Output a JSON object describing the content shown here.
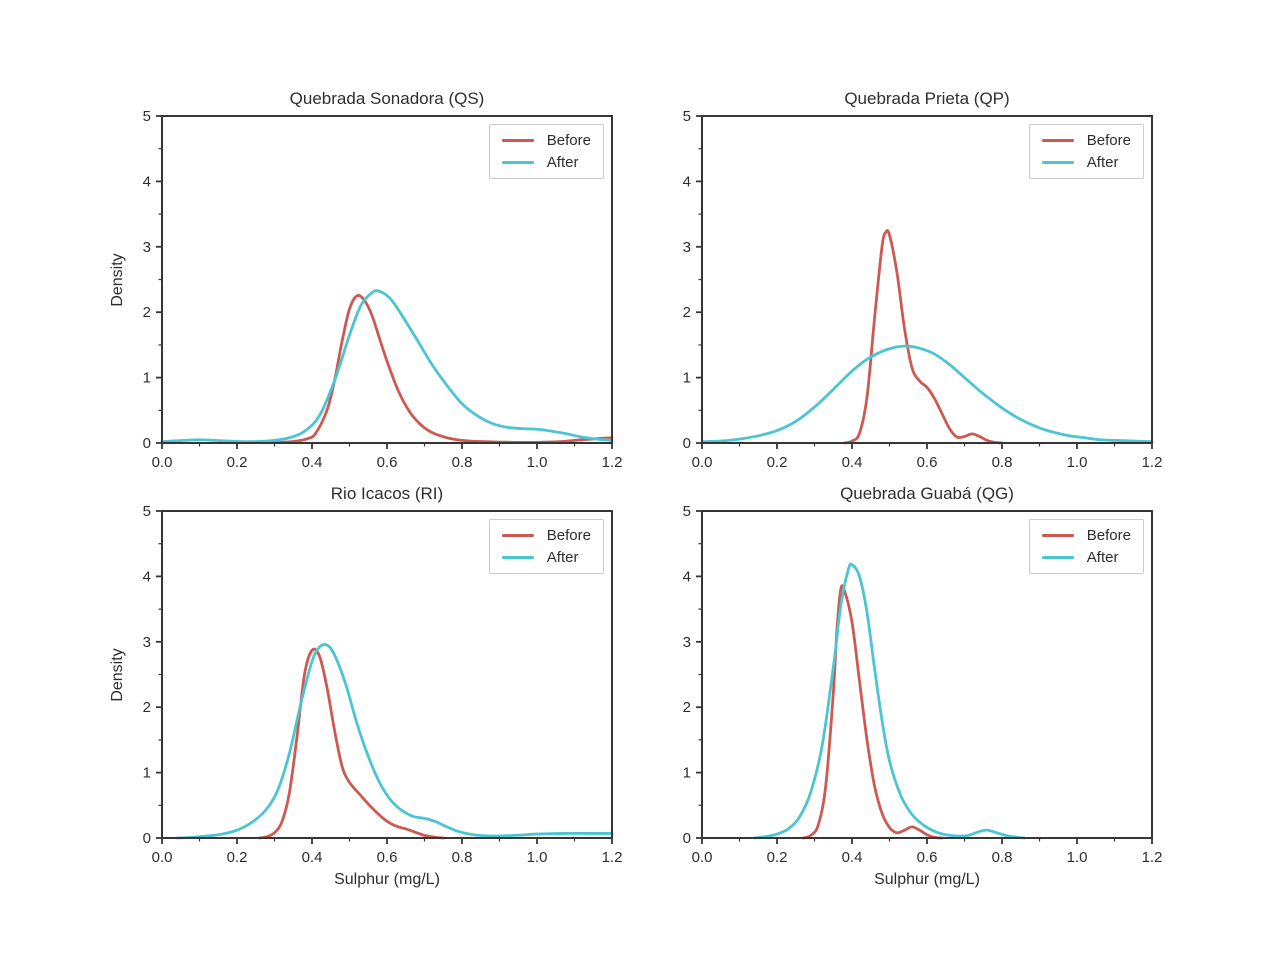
{
  "figure": {
    "background": "#ffffff"
  },
  "style": {
    "before_color": "#cd5a52",
    "after_color": "#4cc5d2",
    "spine_color": "#363636",
    "text_color": "#2e2e2e",
    "legend_border_color": "#cccccc"
  },
  "legend": {
    "before": "Before",
    "after": "After",
    "position": "upper right"
  },
  "axes": {
    "xlabel": "Sulphur (mg/L)",
    "ylabel": "Density",
    "xlim": [
      0,
      1.2
    ],
    "ylim": [
      0,
      5
    ],
    "x_ticks": [
      0.0,
      0.2,
      0.4,
      0.6,
      0.8,
      1.0,
      1.2
    ],
    "x_tick_labels": [
      "0.0",
      "0.2",
      "0.4",
      "0.6",
      "0.8",
      "1.0",
      "1.2"
    ],
    "y_ticks": [
      0,
      1,
      2,
      3,
      4,
      5
    ],
    "y_tick_labels": [
      "0",
      "1",
      "2",
      "3",
      "4",
      "5"
    ],
    "x_minor_step": 0.1,
    "y_minor_step": 0.5,
    "grid": false
  },
  "chart_data": [
    {
      "type": "line",
      "subtype": "kde-density",
      "title": "Quebrada Sonadora (QS)",
      "series": [
        {
          "name": "Before",
          "color": "#cd5a52",
          "points": [
            [
              0.28,
              0.005
            ],
            [
              0.32,
              0.01
            ],
            [
              0.36,
              0.03
            ],
            [
              0.39,
              0.07
            ],
            [
              0.41,
              0.15
            ],
            [
              0.44,
              0.5
            ],
            [
              0.46,
              0.95
            ],
            [
              0.48,
              1.55
            ],
            [
              0.5,
              2.05
            ],
            [
              0.52,
              2.25
            ],
            [
              0.54,
              2.18
            ],
            [
              0.56,
              1.95
            ],
            [
              0.58,
              1.6
            ],
            [
              0.6,
              1.25
            ],
            [
              0.63,
              0.8
            ],
            [
              0.66,
              0.48
            ],
            [
              0.69,
              0.28
            ],
            [
              0.72,
              0.16
            ],
            [
              0.76,
              0.08
            ],
            [
              0.8,
              0.04
            ],
            [
              0.86,
              0.02
            ],
            [
              0.94,
              0.01
            ],
            [
              1.0,
              0.01
            ],
            [
              1.06,
              0.02
            ],
            [
              1.12,
              0.05
            ],
            [
              1.17,
              0.07
            ],
            [
              1.2,
              0.08
            ]
          ]
        },
        {
          "name": "After",
          "color": "#4cc5d2",
          "points": [
            [
              0.0,
              0.02
            ],
            [
              0.06,
              0.04
            ],
            [
              0.1,
              0.05
            ],
            [
              0.14,
              0.04
            ],
            [
              0.18,
              0.03
            ],
            [
              0.24,
              0.02
            ],
            [
              0.3,
              0.04
            ],
            [
              0.34,
              0.08
            ],
            [
              0.38,
              0.18
            ],
            [
              0.42,
              0.42
            ],
            [
              0.46,
              0.95
            ],
            [
              0.5,
              1.65
            ],
            [
              0.53,
              2.1
            ],
            [
              0.56,
              2.3
            ],
            [
              0.58,
              2.32
            ],
            [
              0.61,
              2.2
            ],
            [
              0.64,
              1.95
            ],
            [
              0.68,
              1.58
            ],
            [
              0.72,
              1.2
            ],
            [
              0.76,
              0.88
            ],
            [
              0.8,
              0.6
            ],
            [
              0.84,
              0.42
            ],
            [
              0.88,
              0.3
            ],
            [
              0.92,
              0.24
            ],
            [
              0.96,
              0.22
            ],
            [
              1.0,
              0.21
            ],
            [
              1.04,
              0.18
            ],
            [
              1.08,
              0.14
            ],
            [
              1.12,
              0.09
            ],
            [
              1.16,
              0.06
            ],
            [
              1.2,
              0.04
            ]
          ]
        }
      ]
    },
    {
      "type": "line",
      "subtype": "kde-density",
      "title": "Quebrada Prieta (QP)",
      "series": [
        {
          "name": "Before",
          "color": "#cd5a52",
          "points": [
            [
              0.38,
              0.0
            ],
            [
              0.4,
              0.03
            ],
            [
              0.42,
              0.15
            ],
            [
              0.44,
              0.7
            ],
            [
              0.46,
              1.9
            ],
            [
              0.48,
              3.0
            ],
            [
              0.49,
              3.22
            ],
            [
              0.5,
              3.18
            ],
            [
              0.52,
              2.6
            ],
            [
              0.54,
              1.75
            ],
            [
              0.56,
              1.15
            ],
            [
              0.58,
              0.95
            ],
            [
              0.6,
              0.85
            ],
            [
              0.62,
              0.68
            ],
            [
              0.64,
              0.45
            ],
            [
              0.66,
              0.22
            ],
            [
              0.68,
              0.09
            ],
            [
              0.7,
              0.1
            ],
            [
              0.72,
              0.14
            ],
            [
              0.74,
              0.1
            ],
            [
              0.76,
              0.04
            ],
            [
              0.78,
              0.01
            ],
            [
              0.8,
              0.0
            ]
          ]
        },
        {
          "name": "After",
          "color": "#4cc5d2",
          "points": [
            [
              0.0,
              0.02
            ],
            [
              0.05,
              0.03
            ],
            [
              0.1,
              0.06
            ],
            [
              0.15,
              0.11
            ],
            [
              0.2,
              0.19
            ],
            [
              0.25,
              0.33
            ],
            [
              0.3,
              0.55
            ],
            [
              0.35,
              0.82
            ],
            [
              0.4,
              1.1
            ],
            [
              0.44,
              1.28
            ],
            [
              0.48,
              1.4
            ],
            [
              0.52,
              1.47
            ],
            [
              0.55,
              1.48
            ],
            [
              0.58,
              1.45
            ],
            [
              0.62,
              1.36
            ],
            [
              0.66,
              1.2
            ],
            [
              0.7,
              1.0
            ],
            [
              0.74,
              0.8
            ],
            [
              0.78,
              0.62
            ],
            [
              0.82,
              0.46
            ],
            [
              0.86,
              0.33
            ],
            [
              0.9,
              0.23
            ],
            [
              0.94,
              0.16
            ],
            [
              0.98,
              0.11
            ],
            [
              1.02,
              0.08
            ],
            [
              1.06,
              0.05
            ],
            [
              1.1,
              0.04
            ],
            [
              1.15,
              0.03
            ],
            [
              1.2,
              0.02
            ]
          ]
        }
      ]
    },
    {
      "type": "line",
      "subtype": "kde-density",
      "title": "Rio Icacos (RI)",
      "series": [
        {
          "name": "Before",
          "color": "#cd5a52",
          "points": [
            [
              0.26,
              0.0
            ],
            [
              0.28,
              0.02
            ],
            [
              0.3,
              0.08
            ],
            [
              0.32,
              0.25
            ],
            [
              0.34,
              0.7
            ],
            [
              0.36,
              1.55
            ],
            [
              0.38,
              2.5
            ],
            [
              0.4,
              2.87
            ],
            [
              0.42,
              2.78
            ],
            [
              0.44,
              2.3
            ],
            [
              0.46,
              1.65
            ],
            [
              0.48,
              1.1
            ],
            [
              0.5,
              0.85
            ],
            [
              0.53,
              0.65
            ],
            [
              0.56,
              0.46
            ],
            [
              0.59,
              0.3
            ],
            [
              0.61,
              0.22
            ],
            [
              0.63,
              0.17
            ],
            [
              0.65,
              0.14
            ],
            [
              0.67,
              0.1
            ],
            [
              0.7,
              0.04
            ],
            [
              0.73,
              0.01
            ],
            [
              0.75,
              0.0
            ]
          ]
        },
        {
          "name": "After",
          "color": "#4cc5d2",
          "points": [
            [
              0.04,
              0.0
            ],
            [
              0.08,
              0.01
            ],
            [
              0.12,
              0.03
            ],
            [
              0.16,
              0.06
            ],
            [
              0.2,
              0.12
            ],
            [
              0.24,
              0.24
            ],
            [
              0.28,
              0.45
            ],
            [
              0.31,
              0.75
            ],
            [
              0.34,
              1.3
            ],
            [
              0.37,
              2.05
            ],
            [
              0.4,
              2.7
            ],
            [
              0.42,
              2.92
            ],
            [
              0.44,
              2.95
            ],
            [
              0.46,
              2.8
            ],
            [
              0.49,
              2.35
            ],
            [
              0.52,
              1.75
            ],
            [
              0.55,
              1.25
            ],
            [
              0.58,
              0.85
            ],
            [
              0.61,
              0.58
            ],
            [
              0.64,
              0.42
            ],
            [
              0.67,
              0.33
            ],
            [
              0.7,
              0.3
            ],
            [
              0.73,
              0.25
            ],
            [
              0.76,
              0.17
            ],
            [
              0.79,
              0.1
            ],
            [
              0.83,
              0.05
            ],
            [
              0.88,
              0.03
            ],
            [
              0.94,
              0.04
            ],
            [
              1.0,
              0.06
            ],
            [
              1.08,
              0.07
            ],
            [
              1.14,
              0.07
            ],
            [
              1.2,
              0.07
            ]
          ]
        }
      ]
    },
    {
      "type": "line",
      "subtype": "kde-density",
      "title": "Quebrada Guabá (QG)",
      "series": [
        {
          "name": "Before",
          "color": "#cd5a52",
          "points": [
            [
              0.27,
              0.0
            ],
            [
              0.29,
              0.04
            ],
            [
              0.31,
              0.2
            ],
            [
              0.33,
              0.8
            ],
            [
              0.35,
              2.2
            ],
            [
              0.36,
              3.2
            ],
            [
              0.37,
              3.8
            ],
            [
              0.38,
              3.78
            ],
            [
              0.4,
              3.3
            ],
            [
              0.42,
              2.4
            ],
            [
              0.44,
              1.5
            ],
            [
              0.46,
              0.8
            ],
            [
              0.48,
              0.38
            ],
            [
              0.5,
              0.16
            ],
            [
              0.52,
              0.08
            ],
            [
              0.54,
              0.12
            ],
            [
              0.56,
              0.17
            ],
            [
              0.58,
              0.12
            ],
            [
              0.6,
              0.05
            ],
            [
              0.62,
              0.01
            ],
            [
              0.64,
              0.0
            ]
          ]
        },
        {
          "name": "After",
          "color": "#4cc5d2",
          "points": [
            [
              0.14,
              0.0
            ],
            [
              0.17,
              0.02
            ],
            [
              0.2,
              0.06
            ],
            [
              0.23,
              0.14
            ],
            [
              0.26,
              0.32
            ],
            [
              0.29,
              0.7
            ],
            [
              0.32,
              1.4
            ],
            [
              0.35,
              2.6
            ],
            [
              0.37,
              3.55
            ],
            [
              0.39,
              4.1
            ],
            [
              0.4,
              4.18
            ],
            [
              0.42,
              4.0
            ],
            [
              0.44,
              3.45
            ],
            [
              0.46,
              2.6
            ],
            [
              0.48,
              1.8
            ],
            [
              0.5,
              1.18
            ],
            [
              0.53,
              0.65
            ],
            [
              0.56,
              0.36
            ],
            [
              0.59,
              0.2
            ],
            [
              0.62,
              0.1
            ],
            [
              0.65,
              0.05
            ],
            [
              0.68,
              0.03
            ],
            [
              0.71,
              0.04
            ],
            [
              0.74,
              0.1
            ],
            [
              0.76,
              0.12
            ],
            [
              0.78,
              0.09
            ],
            [
              0.81,
              0.04
            ],
            [
              0.84,
              0.01
            ],
            [
              0.86,
              0.0
            ]
          ]
        }
      ]
    }
  ]
}
